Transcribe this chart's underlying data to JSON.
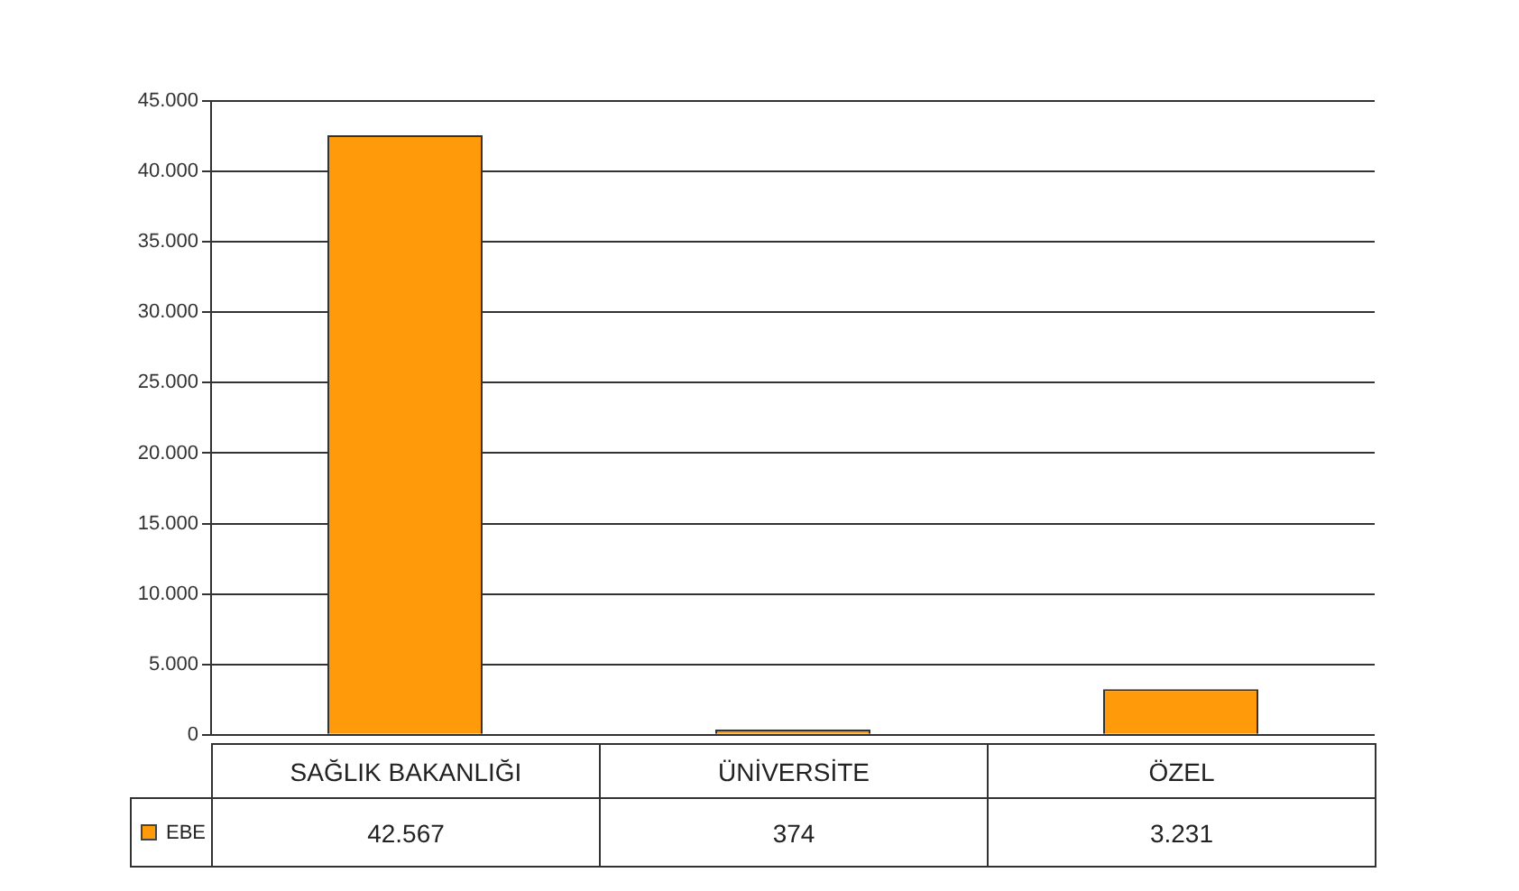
{
  "chart_data": {
    "type": "bar",
    "categories": [
      "SAĞLIK BAKANLIĞI",
      "ÜNİVERSİTE",
      "ÖZEL"
    ],
    "series": [
      {
        "name": "EBE",
        "color": "#ff9a0a",
        "values": [
          42567,
          374,
          3231
        ],
        "value_labels": [
          "42.567",
          "374",
          "3.231"
        ]
      }
    ],
    "ylim": [
      0,
      45000
    ],
    "yticks": [
      0,
      {
        "value": 5000,
        "label": "5.000"
      },
      {
        "value": 10000,
        "label": "10.000"
      },
      {
        "value": 15000,
        "label": "15.000"
      },
      {
        "value": 20000,
        "label": "20.000"
      },
      {
        "value": 25000,
        "label": "25.000"
      },
      {
        "value": 30000,
        "label": "30.000"
      },
      {
        "value": 35000,
        "label": "35.000"
      },
      {
        "value": 40000,
        "label": "40.000"
      },
      {
        "value": 45000,
        "label": "45.000"
      }
    ],
    "grid": true,
    "legend": "bottom left"
  }
}
